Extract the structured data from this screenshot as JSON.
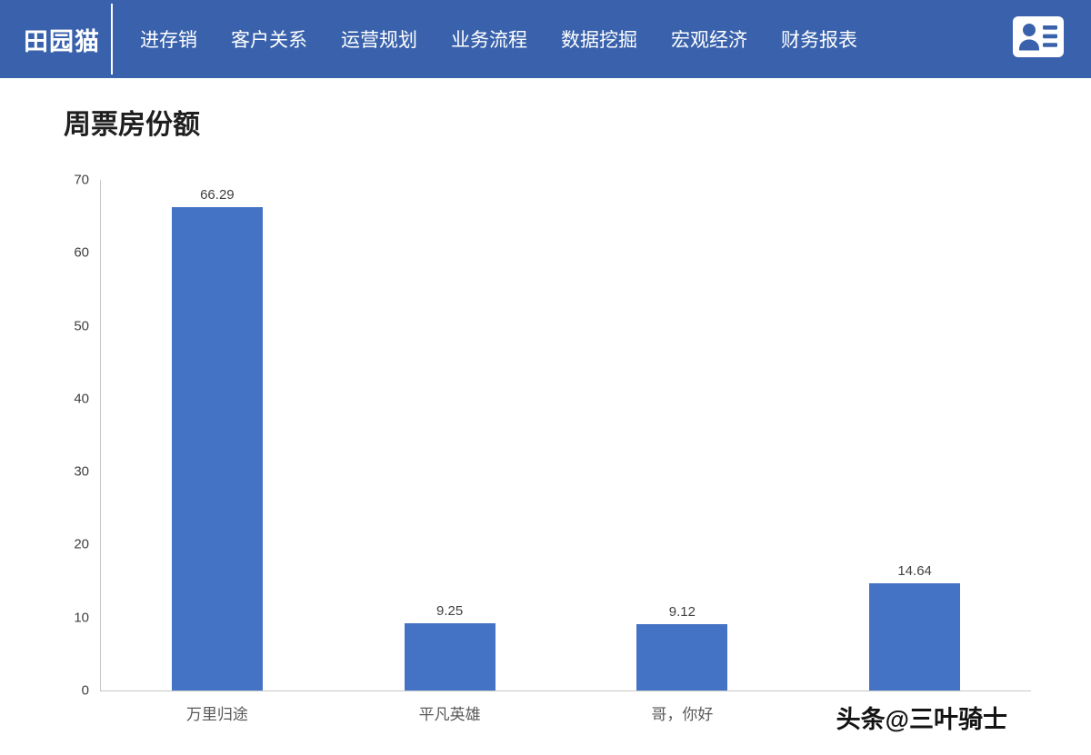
{
  "header": {
    "brand": "田园猫",
    "menu": [
      {
        "label": "进存销"
      },
      {
        "label": "客户关系"
      },
      {
        "label": "运营规划"
      },
      {
        "label": "业务流程"
      },
      {
        "label": "数据挖掘"
      },
      {
        "label": "宏观经济"
      },
      {
        "label": "财务报表"
      }
    ]
  },
  "colors": {
    "header_bg": "#3A62AC",
    "bar": "#4472C4"
  },
  "chart_data": {
    "type": "bar",
    "title": "周票房份额",
    "categories": [
      "万里归途",
      "平凡英雄",
      "哥，你好",
      ""
    ],
    "values": [
      66.29,
      9.25,
      9.12,
      14.64
    ],
    "value_labels": [
      "66.29",
      "9.25",
      "9.12",
      "14.64"
    ],
    "xlabel": "",
    "ylabel": "",
    "ylim": [
      0,
      70
    ],
    "ytick_step": 10,
    "grid": false,
    "legend": "none",
    "bar_color": "#4472C4"
  },
  "watermark": {
    "text": "头条@三叶骑士"
  }
}
